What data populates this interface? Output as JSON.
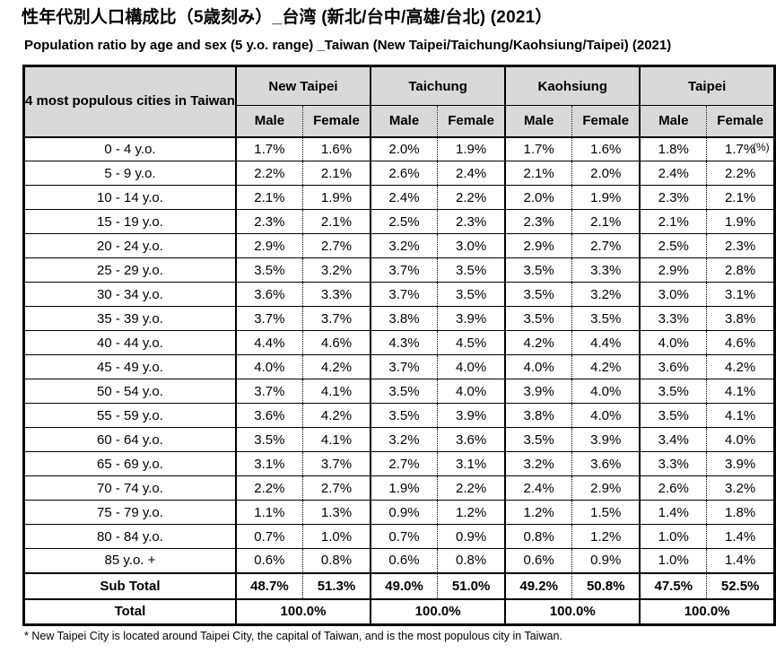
{
  "header": {
    "title": "性年代別人口構成比（5歳刻み）_台湾 (新北/台中/高雄/台北) (2021）",
    "subtitle": "Population ratio by age and sex (5 y.o. range) _Taiwan (New Taipei/Taichung/Kaohsiung/Taipei) (2021)"
  },
  "table": {
    "corner_label": "4 most populous cities in Taiwan",
    "unit_label": "(%)",
    "cities": [
      "New Taipei",
      "Taichung",
      "Kaohsiung",
      "Taipei"
    ],
    "sex_labels": [
      "Male",
      "Female"
    ],
    "rows": [
      {
        "age": "0 - 4 y.o.",
        "values": [
          "1.7%",
          "1.6%",
          "2.0%",
          "1.9%",
          "1.7%",
          "1.6%",
          "1.8%",
          "1.7%"
        ]
      },
      {
        "age": "5 - 9 y.o.",
        "values": [
          "2.2%",
          "2.1%",
          "2.6%",
          "2.4%",
          "2.1%",
          "2.0%",
          "2.4%",
          "2.2%"
        ]
      },
      {
        "age": "10 - 14 y.o.",
        "values": [
          "2.1%",
          "1.9%",
          "2.4%",
          "2.2%",
          "2.0%",
          "1.9%",
          "2.3%",
          "2.1%"
        ]
      },
      {
        "age": "15 - 19 y.o.",
        "values": [
          "2.3%",
          "2.1%",
          "2.5%",
          "2.3%",
          "2.3%",
          "2.1%",
          "2.1%",
          "1.9%"
        ]
      },
      {
        "age": "20 - 24 y.o.",
        "values": [
          "2.9%",
          "2.7%",
          "3.2%",
          "3.0%",
          "2.9%",
          "2.7%",
          "2.5%",
          "2.3%"
        ]
      },
      {
        "age": "25 - 29 y.o.",
        "values": [
          "3.5%",
          "3.2%",
          "3.7%",
          "3.5%",
          "3.5%",
          "3.3%",
          "2.9%",
          "2.8%"
        ]
      },
      {
        "age": "30 - 34 y.o.",
        "values": [
          "3.6%",
          "3.3%",
          "3.7%",
          "3.5%",
          "3.5%",
          "3.2%",
          "3.0%",
          "3.1%"
        ]
      },
      {
        "age": "35 - 39 y.o.",
        "values": [
          "3.7%",
          "3.7%",
          "3.8%",
          "3.9%",
          "3.5%",
          "3.5%",
          "3.3%",
          "3.8%"
        ]
      },
      {
        "age": "40 - 44 y.o.",
        "values": [
          "4.4%",
          "4.6%",
          "4.3%",
          "4.5%",
          "4.2%",
          "4.4%",
          "4.0%",
          "4.6%"
        ]
      },
      {
        "age": "45 - 49 y.o.",
        "values": [
          "4.0%",
          "4.2%",
          "3.7%",
          "4.0%",
          "4.0%",
          "4.2%",
          "3.6%",
          "4.2%"
        ]
      },
      {
        "age": "50 - 54 y.o.",
        "values": [
          "3.7%",
          "4.1%",
          "3.5%",
          "4.0%",
          "3.9%",
          "4.0%",
          "3.5%",
          "4.1%"
        ]
      },
      {
        "age": "55 - 59 y.o.",
        "values": [
          "3.6%",
          "4.2%",
          "3.5%",
          "3.9%",
          "3.8%",
          "4.0%",
          "3.5%",
          "4.1%"
        ]
      },
      {
        "age": "60 - 64 y.o.",
        "values": [
          "3.5%",
          "4.1%",
          "3.2%",
          "3.6%",
          "3.5%",
          "3.9%",
          "3.4%",
          "4.0%"
        ]
      },
      {
        "age": "65 - 69 y.o.",
        "values": [
          "3.1%",
          "3.7%",
          "2.7%",
          "3.1%",
          "3.2%",
          "3.6%",
          "3.3%",
          "3.9%"
        ]
      },
      {
        "age": "70 - 74 y.o.",
        "values": [
          "2.2%",
          "2.7%",
          "1.9%",
          "2.2%",
          "2.4%",
          "2.9%",
          "2.6%",
          "3.2%"
        ]
      },
      {
        "age": "75 - 79 y.o.",
        "values": [
          "1.1%",
          "1.3%",
          "0.9%",
          "1.2%",
          "1.2%",
          "1.5%",
          "1.4%",
          "1.8%"
        ]
      },
      {
        "age": "80 - 84 y.o.",
        "values": [
          "0.7%",
          "1.0%",
          "0.7%",
          "0.9%",
          "0.8%",
          "1.2%",
          "1.0%",
          "1.4%"
        ]
      },
      {
        "age": "85 y.o. +",
        "values": [
          "0.6%",
          "0.8%",
          "0.6%",
          "0.8%",
          "0.6%",
          "0.9%",
          "1.0%",
          "1.4%"
        ]
      }
    ],
    "sub_total": {
      "label": "Sub Total",
      "values": [
        "48.7%",
        "51.3%",
        "49.0%",
        "51.0%",
        "49.2%",
        "50.8%",
        "47.5%",
        "52.5%"
      ]
    },
    "total": {
      "label": "Total",
      "values": [
        "100.0%",
        "100.0%",
        "100.0%",
        "100.0%"
      ]
    }
  },
  "footnote": "* New Taipei City is located around Taipei City, the capital of Taiwan, and is the most populous city in Taiwan.",
  "colors": {
    "header_bg": "#d9d9d9",
    "border": "#000000",
    "text": "#000000"
  }
}
